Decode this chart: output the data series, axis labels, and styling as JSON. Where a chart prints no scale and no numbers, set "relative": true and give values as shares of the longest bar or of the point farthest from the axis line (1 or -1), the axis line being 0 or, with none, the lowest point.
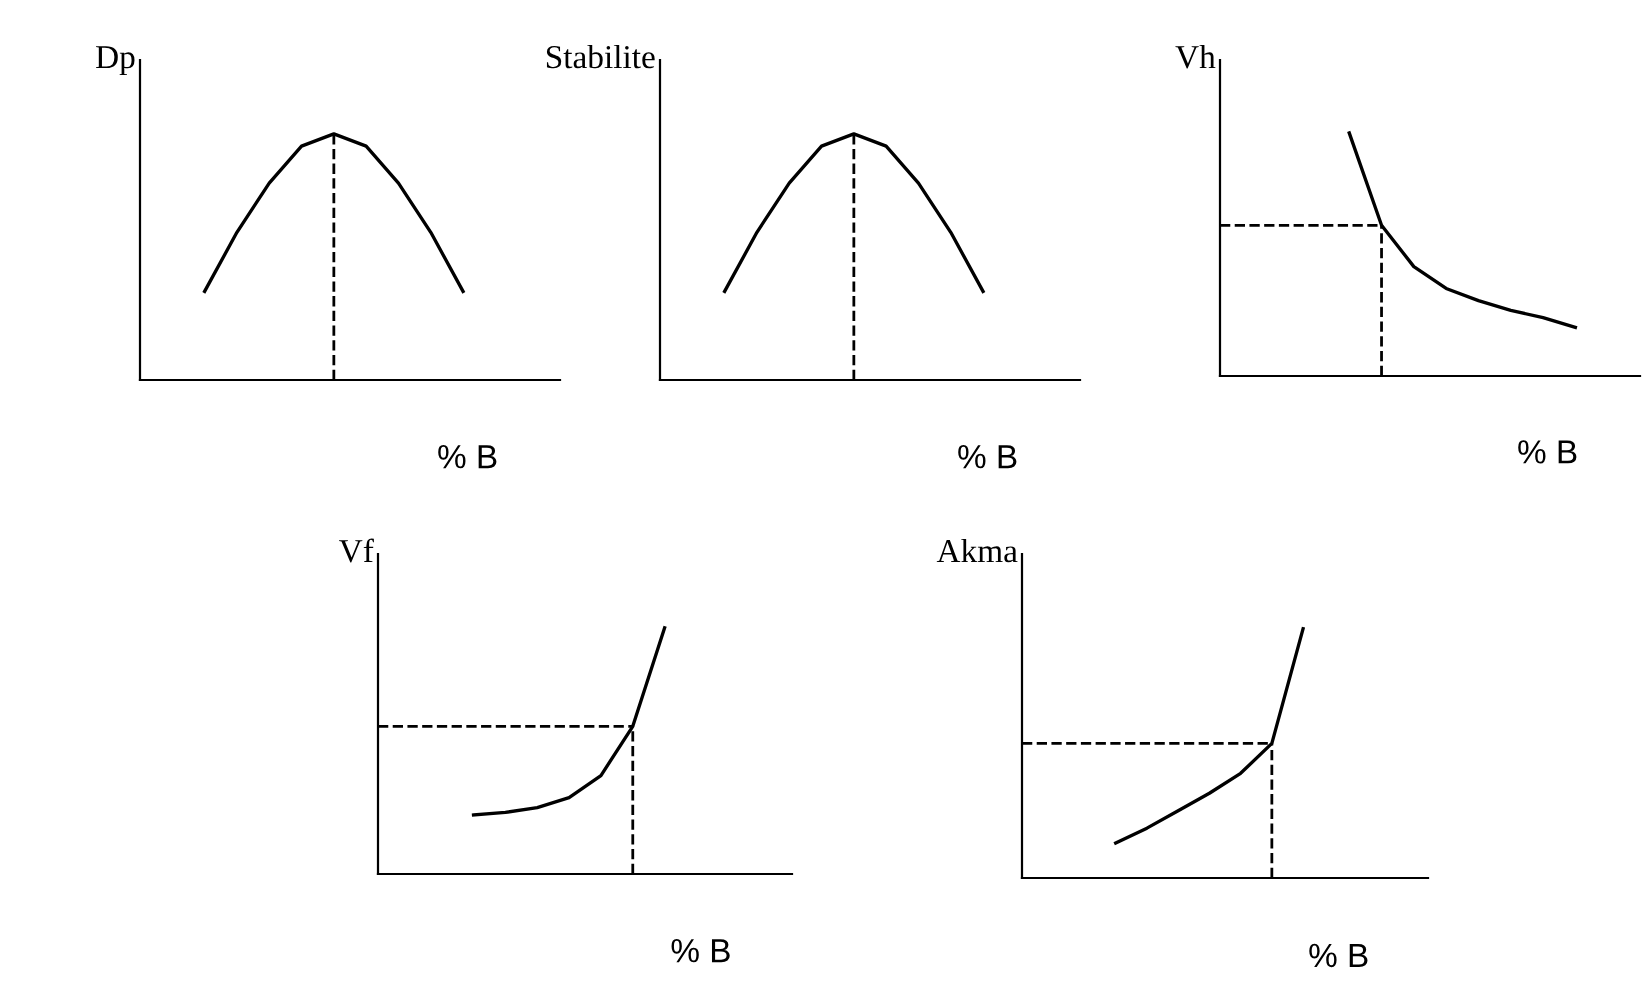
{
  "chart_data": [
    {
      "type": "line",
      "relative": true,
      "ylabel": "Dp",
      "xlabel": "% B",
      "categories": [
        null,
        null,
        null,
        null,
        null,
        null,
        null,
        null,
        null,
        null,
        null,
        null
      ],
      "series": [
        {
          "color": "#000000",
          "values": [
            null,
            0.36,
            0.6,
            0.8,
            0.95,
            1.0,
            0.95,
            0.8,
            0.6,
            0.36,
            null,
            null
          ]
        }
      ],
      "grid": false,
      "legend": false,
      "marker": "none",
      "line_style": "solid"
    },
    {
      "type": "line",
      "relative": true,
      "ylabel": "Stabilite",
      "xlabel": "% B",
      "categories": [
        null,
        null,
        null,
        null,
        null,
        null,
        null,
        null,
        null,
        null,
        null,
        null
      ],
      "series": [
        {
          "color": "#000000",
          "values": [
            null,
            0.36,
            0.6,
            0.8,
            0.95,
            1.0,
            0.95,
            0.8,
            0.6,
            0.36,
            null,
            null
          ]
        }
      ],
      "grid": false,
      "legend": false,
      "marker": "none",
      "line_style": "solid"
    },
    {
      "type": "line",
      "relative": true,
      "ylabel": "Vh",
      "xlabel": "% B",
      "categories": [
        null,
        null,
        null,
        null,
        null,
        null,
        null,
        null,
        null,
        null,
        null,
        null
      ],
      "series": [
        {
          "color": "#000000",
          "values": [
            null,
            null,
            null,
            1.0,
            0.62,
            0.45,
            0.36,
            0.31,
            0.27,
            0.24,
            0.2,
            null
          ]
        }
      ],
      "ref_lines": [
        {
          "axis": "y",
          "value": 0.62,
          "line_style": "dashed"
        }
      ],
      "grid": false,
      "legend": false,
      "marker": "none",
      "line_style": "solid"
    },
    {
      "type": "line",
      "relative": true,
      "ylabel": "Vf",
      "xlabel": "% B",
      "categories": [
        null,
        null,
        null,
        null,
        null,
        null,
        null,
        null,
        null,
        null,
        null,
        null
      ],
      "series": [
        {
          "color": "#000000",
          "values": [
            null,
            null,
            0.24,
            0.25,
            0.27,
            0.31,
            0.4,
            0.6,
            1.0,
            null,
            null,
            null
          ]
        }
      ],
      "ref_lines": [
        {
          "axis": "y",
          "value": 0.6,
          "line_style": "dashed"
        }
      ],
      "grid": false,
      "legend": false,
      "marker": "none",
      "line_style": "solid"
    },
    {
      "type": "line",
      "relative": true,
      "ylabel": "Akma",
      "xlabel": "% B",
      "categories": [
        null,
        null,
        null,
        null,
        null,
        null,
        null,
        null,
        null,
        null,
        null,
        null
      ],
      "series": [
        {
          "color": "#000000",
          "values": [
            null,
            null,
            0.14,
            0.2,
            0.27,
            0.34,
            0.42,
            0.54,
            1.0,
            null,
            null,
            null
          ]
        }
      ],
      "ref_lines": [
        {
          "axis": "y",
          "value": 0.54,
          "line_style": "dashed"
        }
      ],
      "grid": false,
      "legend": false,
      "marker": "none",
      "line_style": "solid"
    }
  ]
}
